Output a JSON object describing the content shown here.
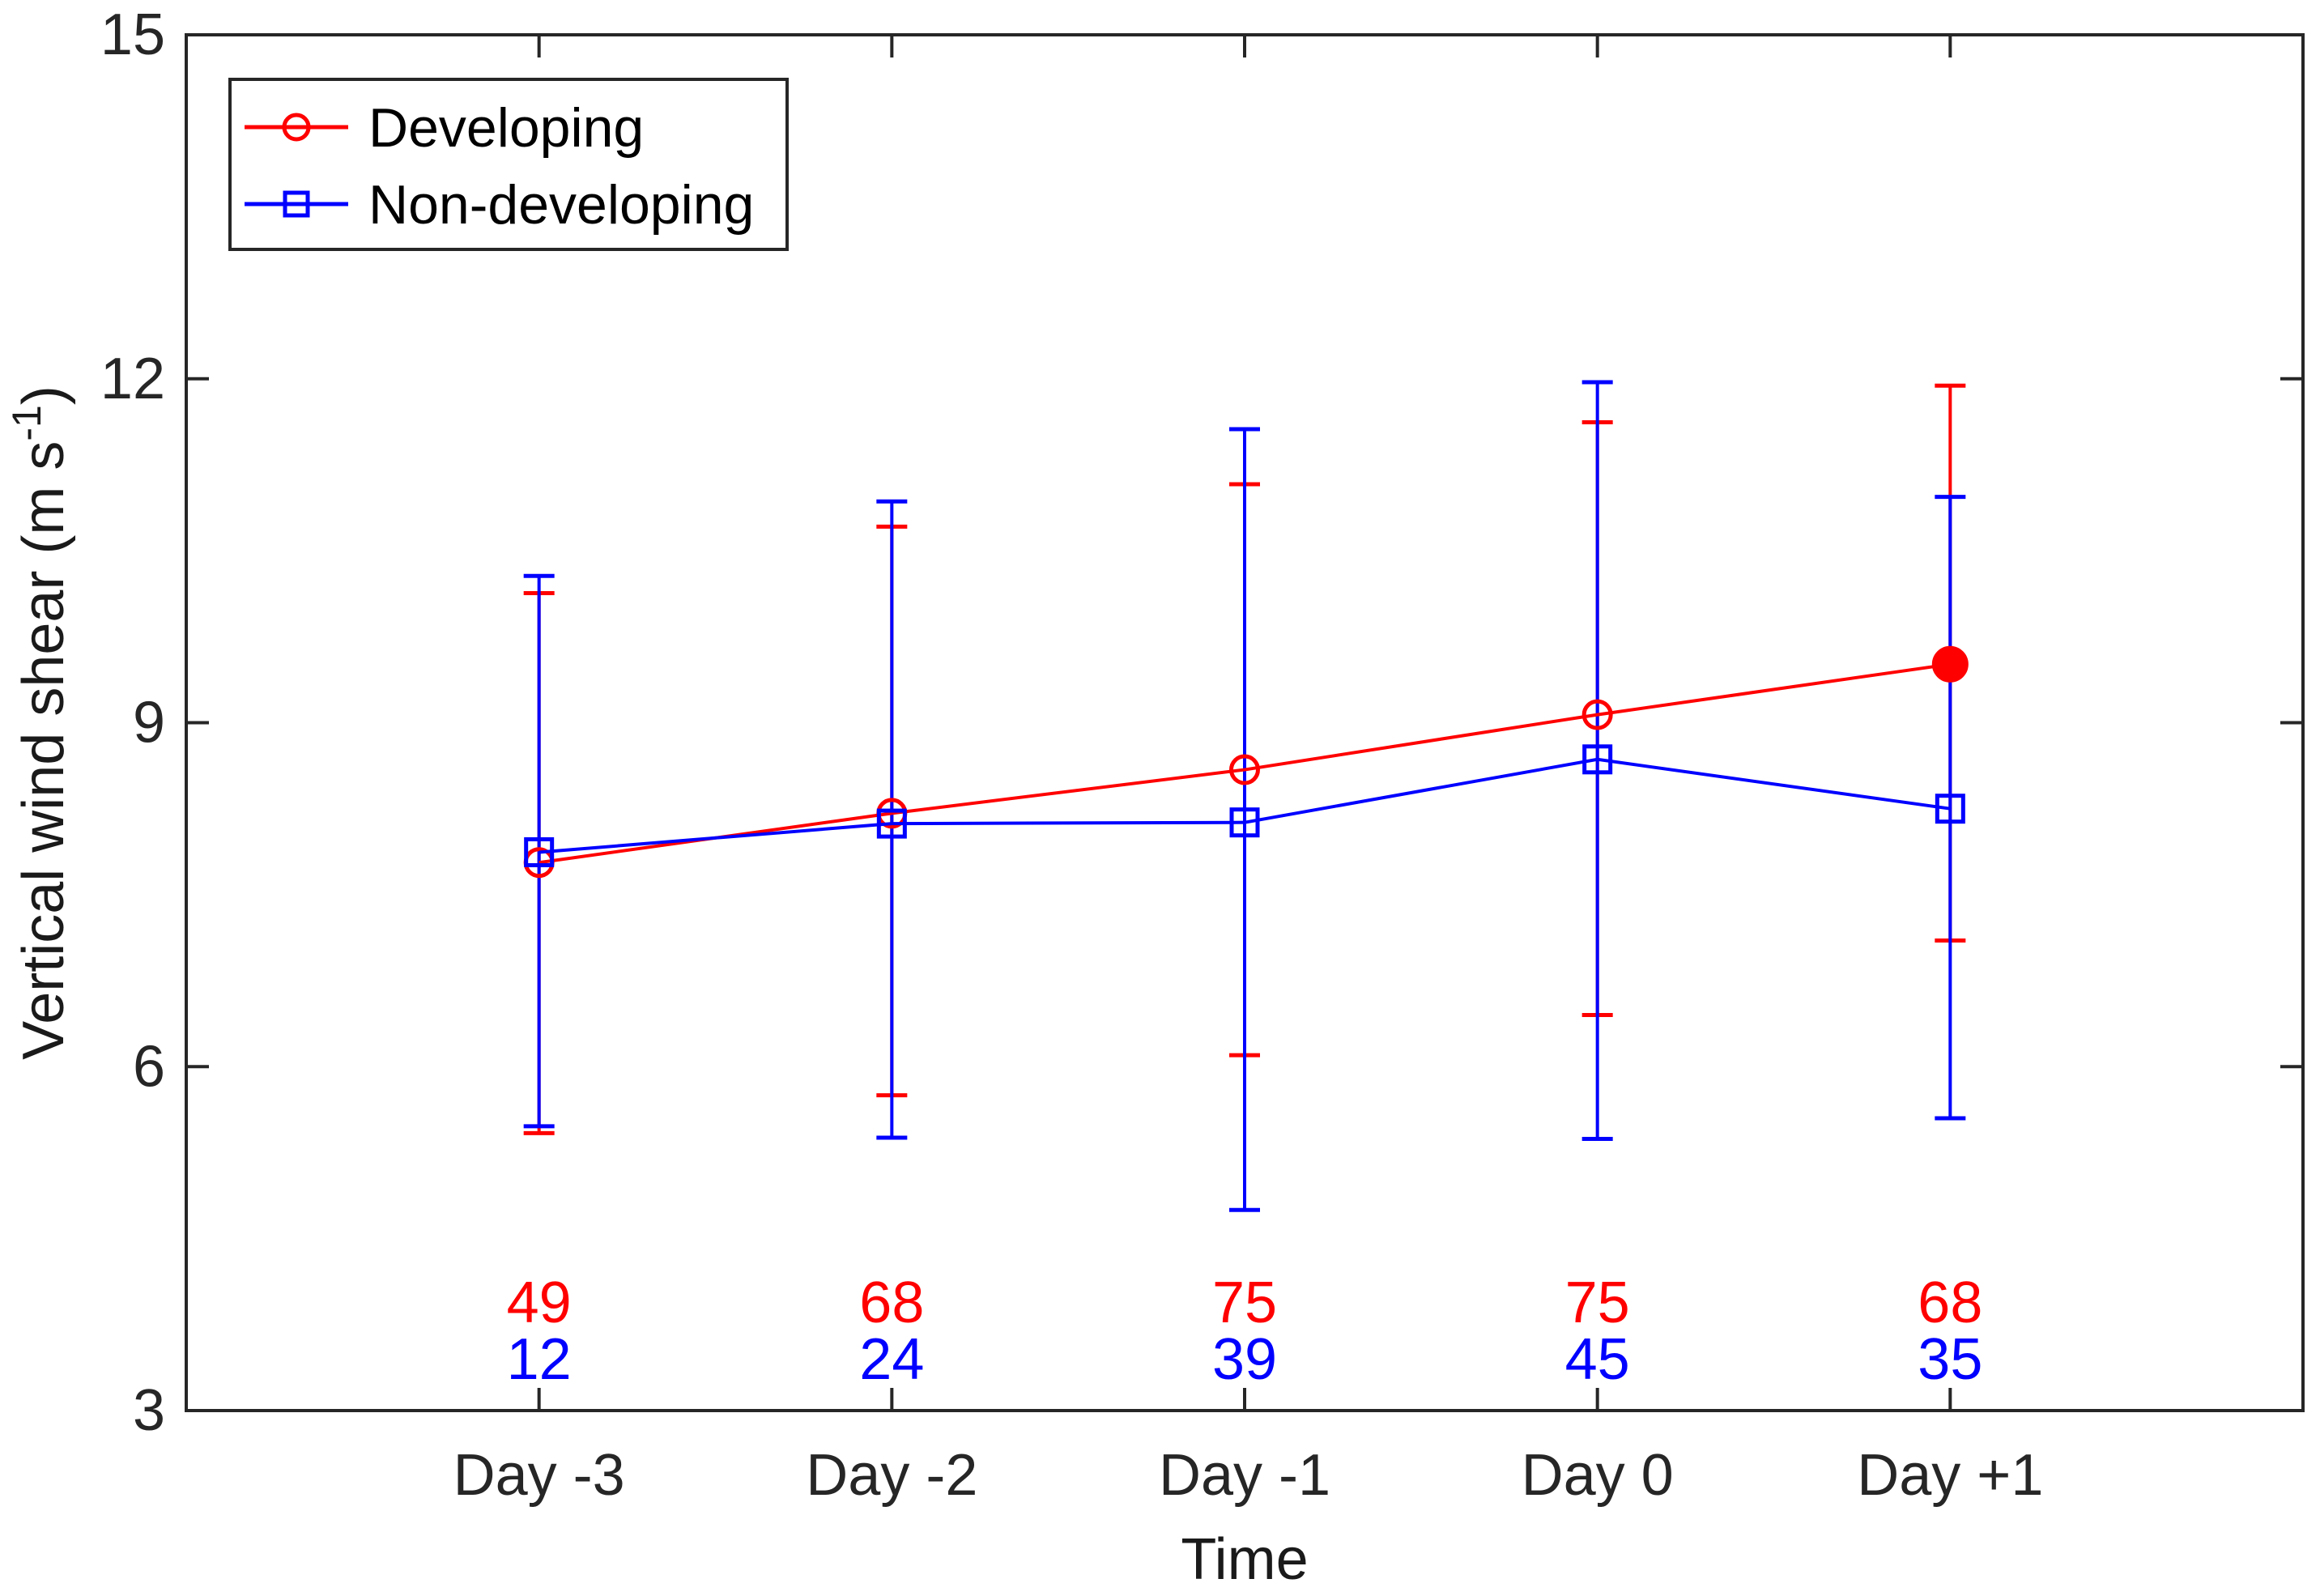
{
  "chart_data": {
    "type": "line",
    "title": "",
    "xlabel": "Time",
    "ylabel": "Vertical wind shear (m s⁻¹)",
    "ylabel_parts": {
      "base": "Vertical wind shear (m s",
      "superscript": "-1",
      "close": ")"
    },
    "categories": [
      "Day -3",
      "Day -2",
      "Day -1",
      "Day 0",
      "Day +1"
    ],
    "ylim": [
      3,
      15
    ],
    "yticks": [
      3,
      6,
      9,
      12,
      15
    ],
    "ytick_labels": [
      "3",
      "6",
      "9",
      "12",
      "15"
    ],
    "grid": false,
    "legend_position": "top-left",
    "axis_color": "#262626",
    "label_color": "#1a1a1a",
    "legend_text_color": "#000000",
    "background_color": "#ffffff",
    "series": [
      {
        "name": "Developing",
        "color": "#ff0000",
        "marker": "circle",
        "values": [
          7.78,
          8.21,
          8.59,
          9.07,
          9.51
        ],
        "err_low": [
          5.42,
          5.75,
          6.1,
          6.45,
          7.1
        ],
        "err_high": [
          10.13,
          10.71,
          11.08,
          11.62,
          11.94
        ],
        "counts": [
          49,
          68,
          75,
          75,
          68
        ],
        "filled_point_indices": [
          4
        ]
      },
      {
        "name": "Non-developing",
        "color": "#0000ff",
        "marker": "square",
        "values": [
          7.87,
          8.12,
          8.13,
          8.68,
          8.25
        ],
        "err_low": [
          5.48,
          5.38,
          4.75,
          5.37,
          5.55
        ],
        "err_high": [
          10.28,
          10.93,
          11.56,
          11.97,
          10.97
        ],
        "counts": [
          12,
          24,
          39,
          45,
          35
        ],
        "filled_point_indices": []
      }
    ]
  }
}
